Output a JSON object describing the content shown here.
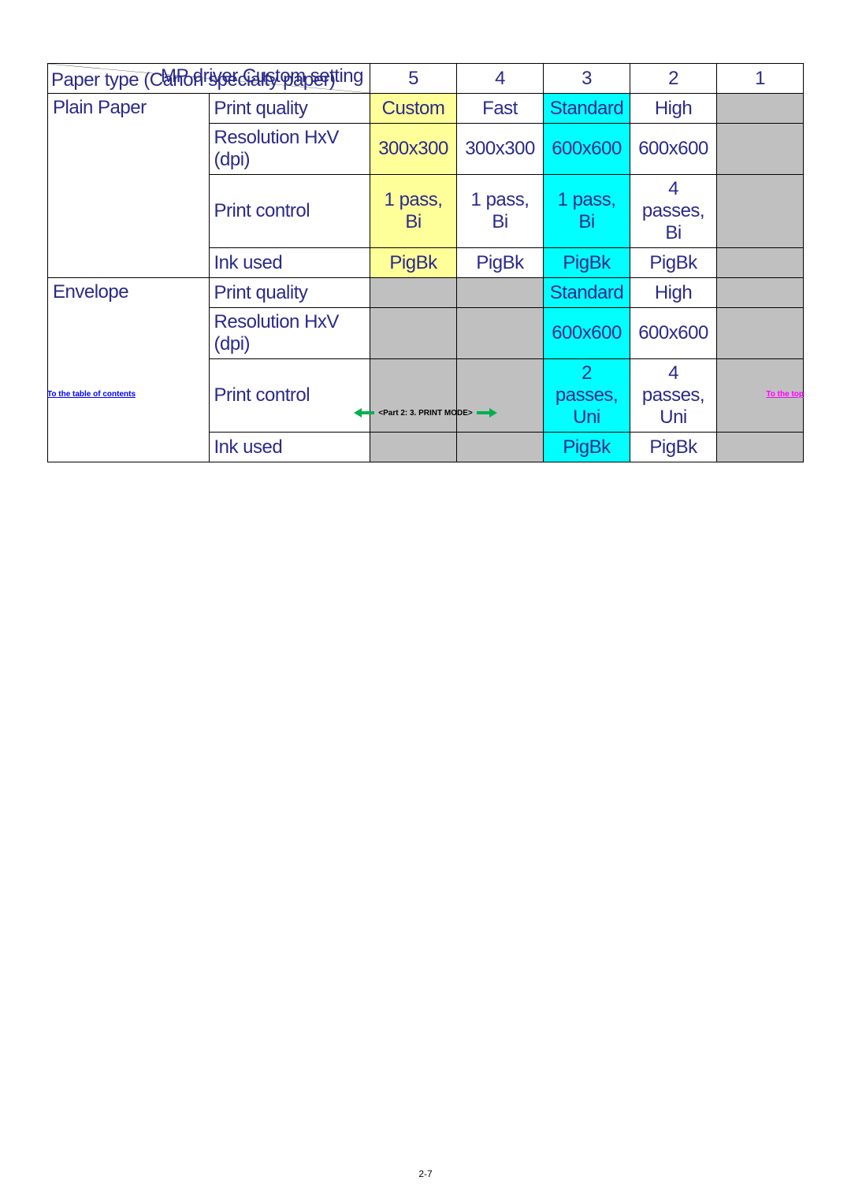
{
  "header": {
    "top_right": "MP driver Custom setting",
    "bottom_left": "Paper type (Canon specialty paper)",
    "cols": [
      "5",
      "4",
      "3",
      "2",
      "1"
    ]
  },
  "attributes": [
    "Print quality",
    "Resolution HxV (dpi)",
    "Print control",
    "Ink used"
  ],
  "groups": [
    {
      "paper": "Plain Paper",
      "rows": [
        {
          "cells": [
            {
              "v": "Custom",
              "bg": "yellow"
            },
            {
              "v": "Fast",
              "bg": ""
            },
            {
              "v": "Standard",
              "bg": "cyan"
            },
            {
              "v": "High",
              "bg": ""
            },
            {
              "v": "",
              "bg": "grey"
            }
          ]
        },
        {
          "cells": [
            {
              "v": "300x300",
              "bg": "yellow"
            },
            {
              "v": "300x300",
              "bg": ""
            },
            {
              "v": "600x600",
              "bg": "cyan"
            },
            {
              "v": "600x600",
              "bg": ""
            },
            {
              "v": "",
              "bg": "grey"
            }
          ]
        },
        {
          "cells": [
            {
              "v": "1 pass, Bi",
              "bg": "yellow"
            },
            {
              "v": "1 pass, Bi",
              "bg": ""
            },
            {
              "v": "1 pass, Bi",
              "bg": "cyan"
            },
            {
              "v": "4 passes, Bi",
              "bg": ""
            },
            {
              "v": "",
              "bg": "grey"
            }
          ]
        },
        {
          "cells": [
            {
              "v": "PigBk",
              "bg": "yellow"
            },
            {
              "v": "PigBk",
              "bg": ""
            },
            {
              "v": "PigBk",
              "bg": "cyan"
            },
            {
              "v": "PigBk",
              "bg": ""
            },
            {
              "v": "",
              "bg": "grey"
            }
          ]
        }
      ]
    },
    {
      "paper": "Envelope",
      "rows": [
        {
          "cells": [
            {
              "v": "",
              "bg": "grey"
            },
            {
              "v": "",
              "bg": "grey"
            },
            {
              "v": "Standard",
              "bg": "cyan"
            },
            {
              "v": "High",
              "bg": ""
            },
            {
              "v": "",
              "bg": "grey"
            }
          ]
        },
        {
          "cells": [
            {
              "v": "",
              "bg": "grey"
            },
            {
              "v": "",
              "bg": "grey"
            },
            {
              "v": "600x600",
              "bg": "cyan"
            },
            {
              "v": "600x600",
              "bg": ""
            },
            {
              "v": "",
              "bg": "grey"
            }
          ]
        },
        {
          "cells": [
            {
              "v": "",
              "bg": "grey"
            },
            {
              "v": "",
              "bg": "grey"
            },
            {
              "v": "2 passes, Uni",
              "bg": "cyan"
            },
            {
              "v": "4 passes, Uni",
              "bg": ""
            },
            {
              "v": "",
              "bg": "grey"
            }
          ]
        },
        {
          "cells": [
            {
              "v": "",
              "bg": "grey"
            },
            {
              "v": "",
              "bg": "grey"
            },
            {
              "v": "PigBk",
              "bg": "cyan"
            },
            {
              "v": "PigBk",
              "bg": ""
            },
            {
              "v": "",
              "bg": "grey"
            }
          ]
        }
      ]
    }
  ],
  "footer": {
    "toc": "To the table of contents",
    "top": "To the top",
    "nav_label": "<Part 2:  3. PRINT MODE>",
    "page_number": "2-7"
  },
  "colors": {
    "text": "#2a2a8a",
    "yellow": "#ffff99",
    "cyan": "#00ffff",
    "grey": "#c0c0c0",
    "link_blue": "#0000ff",
    "link_magenta": "#ff00ff",
    "arrow_green": "#00b050"
  }
}
